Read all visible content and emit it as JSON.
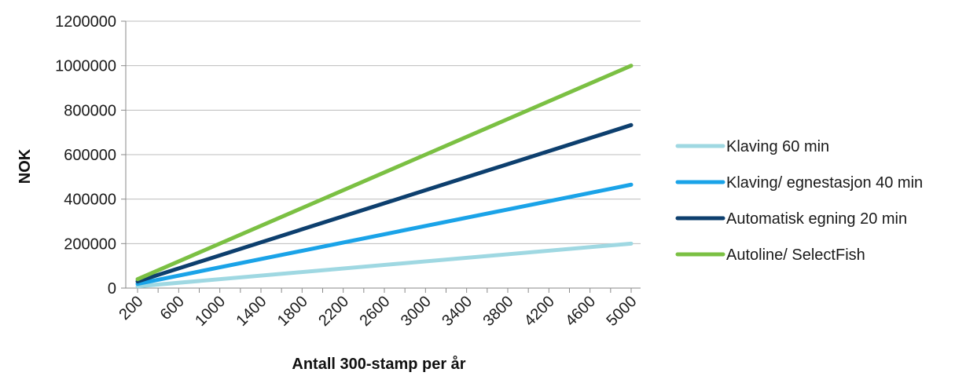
{
  "chart_data": {
    "type": "line",
    "title": "",
    "xlabel": "Antall 300-stamp per år",
    "ylabel": "NOK",
    "x": [
      200,
      400,
      600,
      800,
      1000,
      1200,
      1400,
      1600,
      1800,
      2000,
      2200,
      2400,
      2600,
      2800,
      3000,
      3200,
      3400,
      3600,
      3800,
      4000,
      4200,
      4400,
      4600,
      4800,
      5000
    ],
    "x_tick_labels": [
      "200",
      "600",
      "1000",
      "1400",
      "1800",
      "2200",
      "2600",
      "3000",
      "3400",
      "3800",
      "4200",
      "4600",
      "5000"
    ],
    "ylim": [
      0,
      1200000
    ],
    "y_ticks": [
      0,
      200000,
      400000,
      600000,
      800000,
      1000000,
      1200000
    ],
    "y_tick_labels": [
      "0",
      "200000",
      "400000",
      "600000",
      "800000",
      "1000000",
      "1200000"
    ],
    "grid": "horizontal",
    "legend_position": "right",
    "series": [
      {
        "name": "Klaving 60 min",
        "color": "#9fd8e2",
        "start": [
          200,
          8000
        ],
        "end": [
          5000,
          200000
        ]
      },
      {
        "name": "Klaving/ egnestasjon 40 min",
        "color": "#1aa3e8",
        "start": [
          200,
          19000
        ],
        "end": [
          5000,
          465000
        ]
      },
      {
        "name": "Automatisk egning 20 min",
        "color": "#0d3f6e",
        "start": [
          200,
          30000
        ],
        "end": [
          5000,
          733000
        ]
      },
      {
        "name": "Autoline/ SelectFish",
        "color": "#7bc043",
        "start": [
          200,
          40000
        ],
        "end": [
          5000,
          1000000
        ]
      }
    ]
  }
}
